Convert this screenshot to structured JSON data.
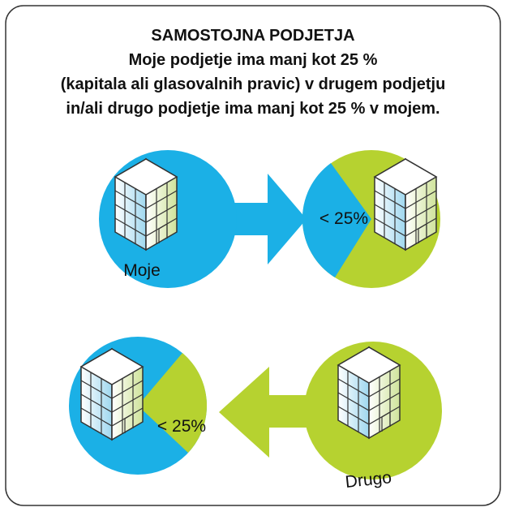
{
  "header": {
    "title_lines": [
      "SAMOSTOJNA PODJETJA",
      "Moje podjetje ima manj kot 25 %",
      "(kapitala ali glasovalnih pravic) v drugem podjetju",
      "in/ali drugo podjetje ima manj kot 25 % v mojem."
    ]
  },
  "top_row": {
    "left_label": "Moje",
    "right_label": "< 25%"
  },
  "bottom_row": {
    "left_label": "< 25%",
    "right_label": "Drugo"
  }
}
